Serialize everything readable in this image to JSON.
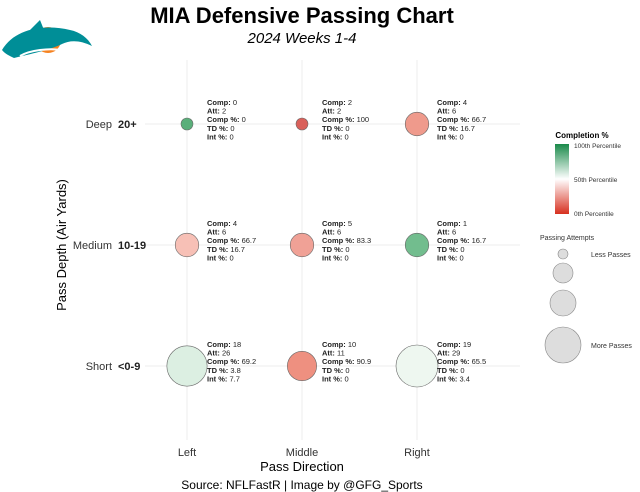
{
  "title": "MIA Defensive Passing Chart",
  "subtitle": "2024 Weeks 1-4",
  "caption": "Source: NFLFastR | Image by @GFG_Sports",
  "logo_text": "MIA",
  "chart_data": {
    "type": "scatter",
    "xlabel": "Pass Direction",
    "ylabel": "Pass Depth (Air Yards)",
    "x_categories": [
      "Left",
      "Middle",
      "Right"
    ],
    "y_categories": [
      {
        "name": "Deep",
        "range": "20+"
      },
      {
        "name": "Medium",
        "range": "10-19"
      },
      {
        "name": "Short",
        "range": "<0-9"
      }
    ],
    "grid": true,
    "cells": [
      {
        "x": "Left",
        "y": "Deep",
        "comp": 0,
        "att": 2,
        "comp_pct": 0,
        "td_pct": 0,
        "int_pct": 0,
        "color": "#5aaf7a"
      },
      {
        "x": "Middle",
        "y": "Deep",
        "comp": 2,
        "att": 2,
        "comp_pct": 100,
        "td_pct": 0,
        "int_pct": 0,
        "color": "#d9605a"
      },
      {
        "x": "Right",
        "y": "Deep",
        "comp": 4,
        "att": 6,
        "comp_pct": 66.7,
        "td_pct": 16.7,
        "int_pct": 0,
        "color": "#ef9a8c"
      },
      {
        "x": "Left",
        "y": "Medium",
        "comp": 4,
        "att": 6,
        "comp_pct": 66.7,
        "td_pct": 16.7,
        "int_pct": 0,
        "color": "#f7c0b6"
      },
      {
        "x": "Middle",
        "y": "Medium",
        "comp": 5,
        "att": 6,
        "comp_pct": 83.3,
        "td_pct": 0,
        "int_pct": 0,
        "color": "#f0a196"
      },
      {
        "x": "Right",
        "y": "Medium",
        "comp": 1,
        "att": 6,
        "comp_pct": 16.7,
        "td_pct": 0,
        "int_pct": 0,
        "color": "#72bd8e"
      },
      {
        "x": "Left",
        "y": "Short",
        "comp": 18,
        "att": 26,
        "comp_pct": 69.2,
        "td_pct": 3.8,
        "int_pct": 7.7,
        "color": "#dcefe2"
      },
      {
        "x": "Middle",
        "y": "Short",
        "comp": 10,
        "att": 11,
        "comp_pct": 90.9,
        "td_pct": 0,
        "int_pct": 0,
        "color": "#ee9080"
      },
      {
        "x": "Right",
        "y": "Short",
        "comp": 19,
        "att": 29,
        "comp_pct": 65.5,
        "td_pct": 0,
        "int_pct": 3.4,
        "color": "#eef7f0"
      }
    ],
    "labels": {
      "comp": "Comp:",
      "att": "Att:",
      "comp_pct": "Comp %:",
      "td_pct": "TD %:",
      "int_pct": "Int %:"
    },
    "legend": {
      "placement": "right",
      "color_title": "Completion %",
      "color_labels": [
        "100th Percentile",
        "50th Percentile",
        "0th Percentile"
      ],
      "colors": {
        "high": "#1a8a4a",
        "mid": "#ffffff",
        "low": "#d7301f"
      },
      "size_title": "Passing Attempts",
      "size_labels": [
        "Less Passes",
        "More Passes"
      ]
    }
  }
}
